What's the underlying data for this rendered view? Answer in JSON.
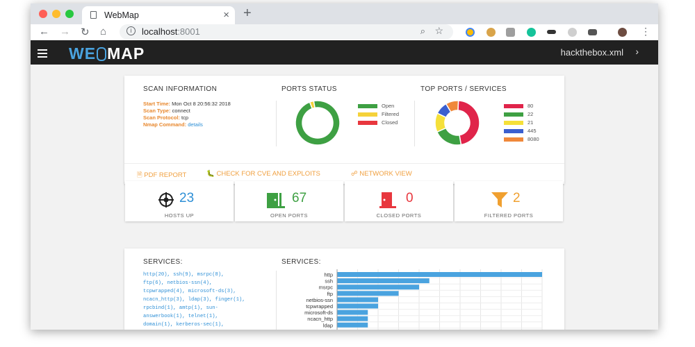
{
  "browser": {
    "tab_title": "WebMap",
    "url_host": "localhost",
    "url_port": ":8001",
    "colors": {
      "close": "#ff5f57",
      "minimize": "#febc2e",
      "maximize": "#28c840"
    }
  },
  "app": {
    "logo_we": "WE",
    "logo_map": "MAP",
    "file_name": "hackthebox.xml"
  },
  "scan_info": {
    "title": "SCAN INFORMATION",
    "start_time_label": "Start Time:",
    "start_time": "Mon Oct 8 20:56:32 2018",
    "scan_type_label": "Scan Type:",
    "scan_type": "connect",
    "scan_protocol_label": "Scan Protocol:",
    "scan_protocol": "tcp",
    "nmap_command_label": "Nmap Command:",
    "nmap_command": "details"
  },
  "ports_status": {
    "title": "PORTS STATUS",
    "legend": [
      {
        "label": "Open",
        "color": "#3ea043",
        "value": 67
      },
      {
        "label": "Filtered",
        "color": "#f5d23a",
        "value": 2
      },
      {
        "label": "Closed",
        "color": "#e8373e",
        "value": 0
      }
    ]
  },
  "top_ports": {
    "title": "TOP PORTS / SERVICES",
    "legend": [
      {
        "label": "80",
        "color": "#e0244a",
        "value": 20
      },
      {
        "label": "22",
        "color": "#3ea043",
        "value": 9
      },
      {
        "label": "21",
        "color": "#f5e03a",
        "value": 6
      },
      {
        "label": "445",
        "color": "#3b5fcf",
        "value": 4
      },
      {
        "label": "8080",
        "color": "#f0883a",
        "value": 4
      }
    ]
  },
  "actions": {
    "pdf": "PDF REPORT",
    "cve": "CHECK FOR CVE AND EXPLOITS",
    "network": "NETWORK VIEW"
  },
  "stats": [
    {
      "value": "23",
      "label": "HOSTS UP",
      "color": "#2d8fd6"
    },
    {
      "value": "67",
      "label": "OPEN PORTS",
      "color": "#3ea043"
    },
    {
      "value": "0",
      "label": "CLOSED PORTS",
      "color": "#e8373e"
    },
    {
      "value": "2",
      "label": "FILTERED PORTS",
      "color": "#f0a030"
    }
  ],
  "services": {
    "title_left": "SERVICES:",
    "title_right": "SERVICES:",
    "list_lines": [
      "http(20), ssh(9), msrpc(8),",
      "ftp(6), netbios-ssn(4),",
      "tcpwrapped(4), microsoft-ds(3),",
      "ncacn_http(3), ldap(3), finger(1),",
      "rpcbind(1), amtp(1), sun-",
      "answerbook(1), telnet(1),",
      "domain(1), kerberos-sec(1),"
    ]
  },
  "chart_data": {
    "type": "bar",
    "orientation": "horizontal",
    "categories": [
      "http",
      "ssh",
      "msrpc",
      "ftp",
      "netbios-ssn",
      "tcpwrapped",
      "microsoft-ds",
      "ncacn_http",
      "ldap"
    ],
    "values": [
      20,
      9,
      8,
      6,
      4,
      4,
      3,
      3,
      3
    ],
    "color": "#4aa3df",
    "grid": true
  }
}
